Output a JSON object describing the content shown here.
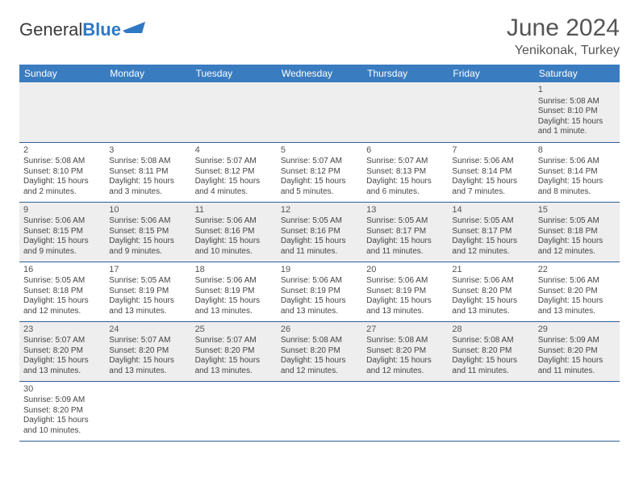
{
  "logo": {
    "text_a": "General",
    "text_b": "Blue"
  },
  "title": "June 2024",
  "location": "Yenikonak, Turkey",
  "colors": {
    "header_bg": "#3a7cc0",
    "header_fg": "#ffffff",
    "row_odd_bg": "#eeeeee",
    "row_even_bg": "#ffffff",
    "cell_border": "#2f5f9a",
    "text": "#444444",
    "title": "#555555"
  },
  "weekdays": [
    "Sunday",
    "Monday",
    "Tuesday",
    "Wednesday",
    "Thursday",
    "Friday",
    "Saturday"
  ],
  "weeks": [
    [
      null,
      null,
      null,
      null,
      null,
      null,
      {
        "n": "1",
        "sr": "Sunrise: 5:08 AM",
        "ss": "Sunset: 8:10 PM",
        "d1": "Daylight: 15 hours",
        "d2": "and 1 minute."
      }
    ],
    [
      {
        "n": "2",
        "sr": "Sunrise: 5:08 AM",
        "ss": "Sunset: 8:10 PM",
        "d1": "Daylight: 15 hours",
        "d2": "and 2 minutes."
      },
      {
        "n": "3",
        "sr": "Sunrise: 5:08 AM",
        "ss": "Sunset: 8:11 PM",
        "d1": "Daylight: 15 hours",
        "d2": "and 3 minutes."
      },
      {
        "n": "4",
        "sr": "Sunrise: 5:07 AM",
        "ss": "Sunset: 8:12 PM",
        "d1": "Daylight: 15 hours",
        "d2": "and 4 minutes."
      },
      {
        "n": "5",
        "sr": "Sunrise: 5:07 AM",
        "ss": "Sunset: 8:12 PM",
        "d1": "Daylight: 15 hours",
        "d2": "and 5 minutes."
      },
      {
        "n": "6",
        "sr": "Sunrise: 5:07 AM",
        "ss": "Sunset: 8:13 PM",
        "d1": "Daylight: 15 hours",
        "d2": "and 6 minutes."
      },
      {
        "n": "7",
        "sr": "Sunrise: 5:06 AM",
        "ss": "Sunset: 8:14 PM",
        "d1": "Daylight: 15 hours",
        "d2": "and 7 minutes."
      },
      {
        "n": "8",
        "sr": "Sunrise: 5:06 AM",
        "ss": "Sunset: 8:14 PM",
        "d1": "Daylight: 15 hours",
        "d2": "and 8 minutes."
      }
    ],
    [
      {
        "n": "9",
        "sr": "Sunrise: 5:06 AM",
        "ss": "Sunset: 8:15 PM",
        "d1": "Daylight: 15 hours",
        "d2": "and 9 minutes."
      },
      {
        "n": "10",
        "sr": "Sunrise: 5:06 AM",
        "ss": "Sunset: 8:15 PM",
        "d1": "Daylight: 15 hours",
        "d2": "and 9 minutes."
      },
      {
        "n": "11",
        "sr": "Sunrise: 5:06 AM",
        "ss": "Sunset: 8:16 PM",
        "d1": "Daylight: 15 hours",
        "d2": "and 10 minutes."
      },
      {
        "n": "12",
        "sr": "Sunrise: 5:05 AM",
        "ss": "Sunset: 8:16 PM",
        "d1": "Daylight: 15 hours",
        "d2": "and 11 minutes."
      },
      {
        "n": "13",
        "sr": "Sunrise: 5:05 AM",
        "ss": "Sunset: 8:17 PM",
        "d1": "Daylight: 15 hours",
        "d2": "and 11 minutes."
      },
      {
        "n": "14",
        "sr": "Sunrise: 5:05 AM",
        "ss": "Sunset: 8:17 PM",
        "d1": "Daylight: 15 hours",
        "d2": "and 12 minutes."
      },
      {
        "n": "15",
        "sr": "Sunrise: 5:05 AM",
        "ss": "Sunset: 8:18 PM",
        "d1": "Daylight: 15 hours",
        "d2": "and 12 minutes."
      }
    ],
    [
      {
        "n": "16",
        "sr": "Sunrise: 5:05 AM",
        "ss": "Sunset: 8:18 PM",
        "d1": "Daylight: 15 hours",
        "d2": "and 12 minutes."
      },
      {
        "n": "17",
        "sr": "Sunrise: 5:05 AM",
        "ss": "Sunset: 8:19 PM",
        "d1": "Daylight: 15 hours",
        "d2": "and 13 minutes."
      },
      {
        "n": "18",
        "sr": "Sunrise: 5:06 AM",
        "ss": "Sunset: 8:19 PM",
        "d1": "Daylight: 15 hours",
        "d2": "and 13 minutes."
      },
      {
        "n": "19",
        "sr": "Sunrise: 5:06 AM",
        "ss": "Sunset: 8:19 PM",
        "d1": "Daylight: 15 hours",
        "d2": "and 13 minutes."
      },
      {
        "n": "20",
        "sr": "Sunrise: 5:06 AM",
        "ss": "Sunset: 8:19 PM",
        "d1": "Daylight: 15 hours",
        "d2": "and 13 minutes."
      },
      {
        "n": "21",
        "sr": "Sunrise: 5:06 AM",
        "ss": "Sunset: 8:20 PM",
        "d1": "Daylight: 15 hours",
        "d2": "and 13 minutes."
      },
      {
        "n": "22",
        "sr": "Sunrise: 5:06 AM",
        "ss": "Sunset: 8:20 PM",
        "d1": "Daylight: 15 hours",
        "d2": "and 13 minutes."
      }
    ],
    [
      {
        "n": "23",
        "sr": "Sunrise: 5:07 AM",
        "ss": "Sunset: 8:20 PM",
        "d1": "Daylight: 15 hours",
        "d2": "and 13 minutes."
      },
      {
        "n": "24",
        "sr": "Sunrise: 5:07 AM",
        "ss": "Sunset: 8:20 PM",
        "d1": "Daylight: 15 hours",
        "d2": "and 13 minutes."
      },
      {
        "n": "25",
        "sr": "Sunrise: 5:07 AM",
        "ss": "Sunset: 8:20 PM",
        "d1": "Daylight: 15 hours",
        "d2": "and 13 minutes."
      },
      {
        "n": "26",
        "sr": "Sunrise: 5:08 AM",
        "ss": "Sunset: 8:20 PM",
        "d1": "Daylight: 15 hours",
        "d2": "and 12 minutes."
      },
      {
        "n": "27",
        "sr": "Sunrise: 5:08 AM",
        "ss": "Sunset: 8:20 PM",
        "d1": "Daylight: 15 hours",
        "d2": "and 12 minutes."
      },
      {
        "n": "28",
        "sr": "Sunrise: 5:08 AM",
        "ss": "Sunset: 8:20 PM",
        "d1": "Daylight: 15 hours",
        "d2": "and 11 minutes."
      },
      {
        "n": "29",
        "sr": "Sunrise: 5:09 AM",
        "ss": "Sunset: 8:20 PM",
        "d1": "Daylight: 15 hours",
        "d2": "and 11 minutes."
      }
    ],
    [
      {
        "n": "30",
        "sr": "Sunrise: 5:09 AM",
        "ss": "Sunset: 8:20 PM",
        "d1": "Daylight: 15 hours",
        "d2": "and 10 minutes."
      },
      null,
      null,
      null,
      null,
      null,
      null
    ]
  ]
}
